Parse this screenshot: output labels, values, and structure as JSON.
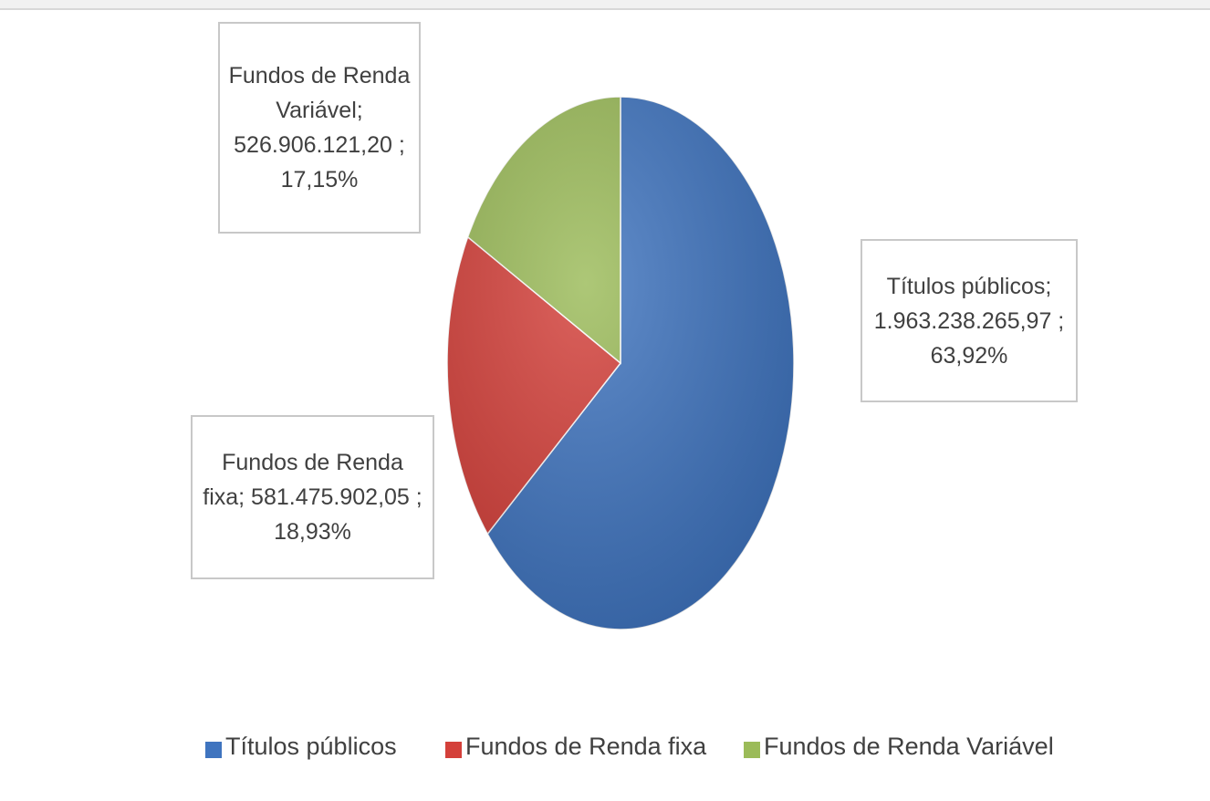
{
  "chart_data": {
    "type": "pie",
    "categories": [
      "Títulos públicos",
      "Fundos de Renda fixa",
      "Fundos de Renda Variável"
    ],
    "values": [
      1963238265.97,
      581475902.05,
      526906121.2
    ],
    "value_labels": [
      "Títulos públicos; 1.963.238.265,97 ; 63,92%",
      "Fundos de Renda fixa;  581.475.902,05 ; 18,93%",
      "Fundos de Renda Variável; 526.906.121,20 ; 17,15%"
    ],
    "colors": [
      "#3f74bf",
      "#d4403a",
      "#9bbb59"
    ],
    "legend": "bottom"
  }
}
